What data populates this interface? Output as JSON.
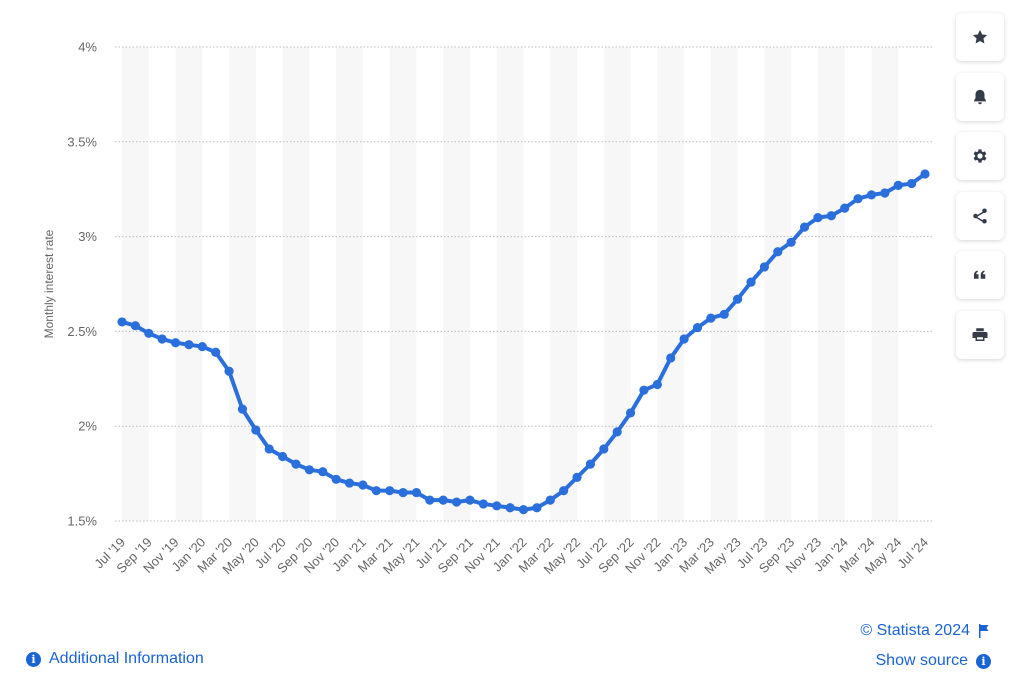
{
  "chart_data": {
    "type": "line",
    "title": "",
    "xlabel": "",
    "ylabel": "Monthly interest rate",
    "y_ticks": [
      "1.5%",
      "2%",
      "2.5%",
      "3%",
      "3.5%",
      "4%"
    ],
    "y_tick_values": [
      1.5,
      2.0,
      2.5,
      3.0,
      3.5,
      4.0
    ],
    "ylim": [
      1.5,
      4.0
    ],
    "x_tick_labels": [
      "Jul '19",
      "Sep '19",
      "Nov '19",
      "Jan '20",
      "Mar '20",
      "May '20",
      "Jul '20",
      "Sep '20",
      "Nov '20",
      "Jan '21",
      "Mar '21",
      "May '21",
      "Jul '21",
      "Sep '21",
      "Nov '21",
      "Jan '22",
      "Mar '22",
      "May '22",
      "Jul '22",
      "Sep '22",
      "Nov '22",
      "Jan '23",
      "Mar '23",
      "May '23",
      "Jul '23",
      "Sep '23",
      "Nov '23",
      "Jan '24",
      "Mar '24",
      "May '24",
      "Jul '24"
    ],
    "x_start": "Jul '19",
    "x_end": "Jul '24",
    "grid": true,
    "legend": "none",
    "line_color": "#2a6fdb",
    "values": [
      2.55,
      2.53,
      2.49,
      2.46,
      2.44,
      2.43,
      2.42,
      2.39,
      2.29,
      2.09,
      1.98,
      1.88,
      1.84,
      1.8,
      1.77,
      1.76,
      1.72,
      1.7,
      1.69,
      1.66,
      1.66,
      1.65,
      1.65,
      1.61,
      1.61,
      1.6,
      1.61,
      1.59,
      1.58,
      1.57,
      1.56,
      1.57,
      1.61,
      1.66,
      1.73,
      1.8,
      1.88,
      1.97,
      2.07,
      2.19,
      2.22,
      2.36,
      2.46,
      2.52,
      2.57,
      2.59,
      2.67,
      2.76,
      2.84,
      2.92,
      2.97,
      3.05,
      3.1,
      3.11,
      3.15,
      3.2,
      3.22,
      3.23,
      3.27,
      3.28,
      3.33
    ]
  },
  "toolbar": {
    "icons": [
      "star-icon",
      "bell-icon",
      "gear-icon",
      "share-icon",
      "quote-icon",
      "print-icon"
    ]
  },
  "footer": {
    "copyright": "© Statista 2024",
    "additional_information": "Additional Information",
    "show_source": "Show source",
    "info_glyph": "i"
  }
}
